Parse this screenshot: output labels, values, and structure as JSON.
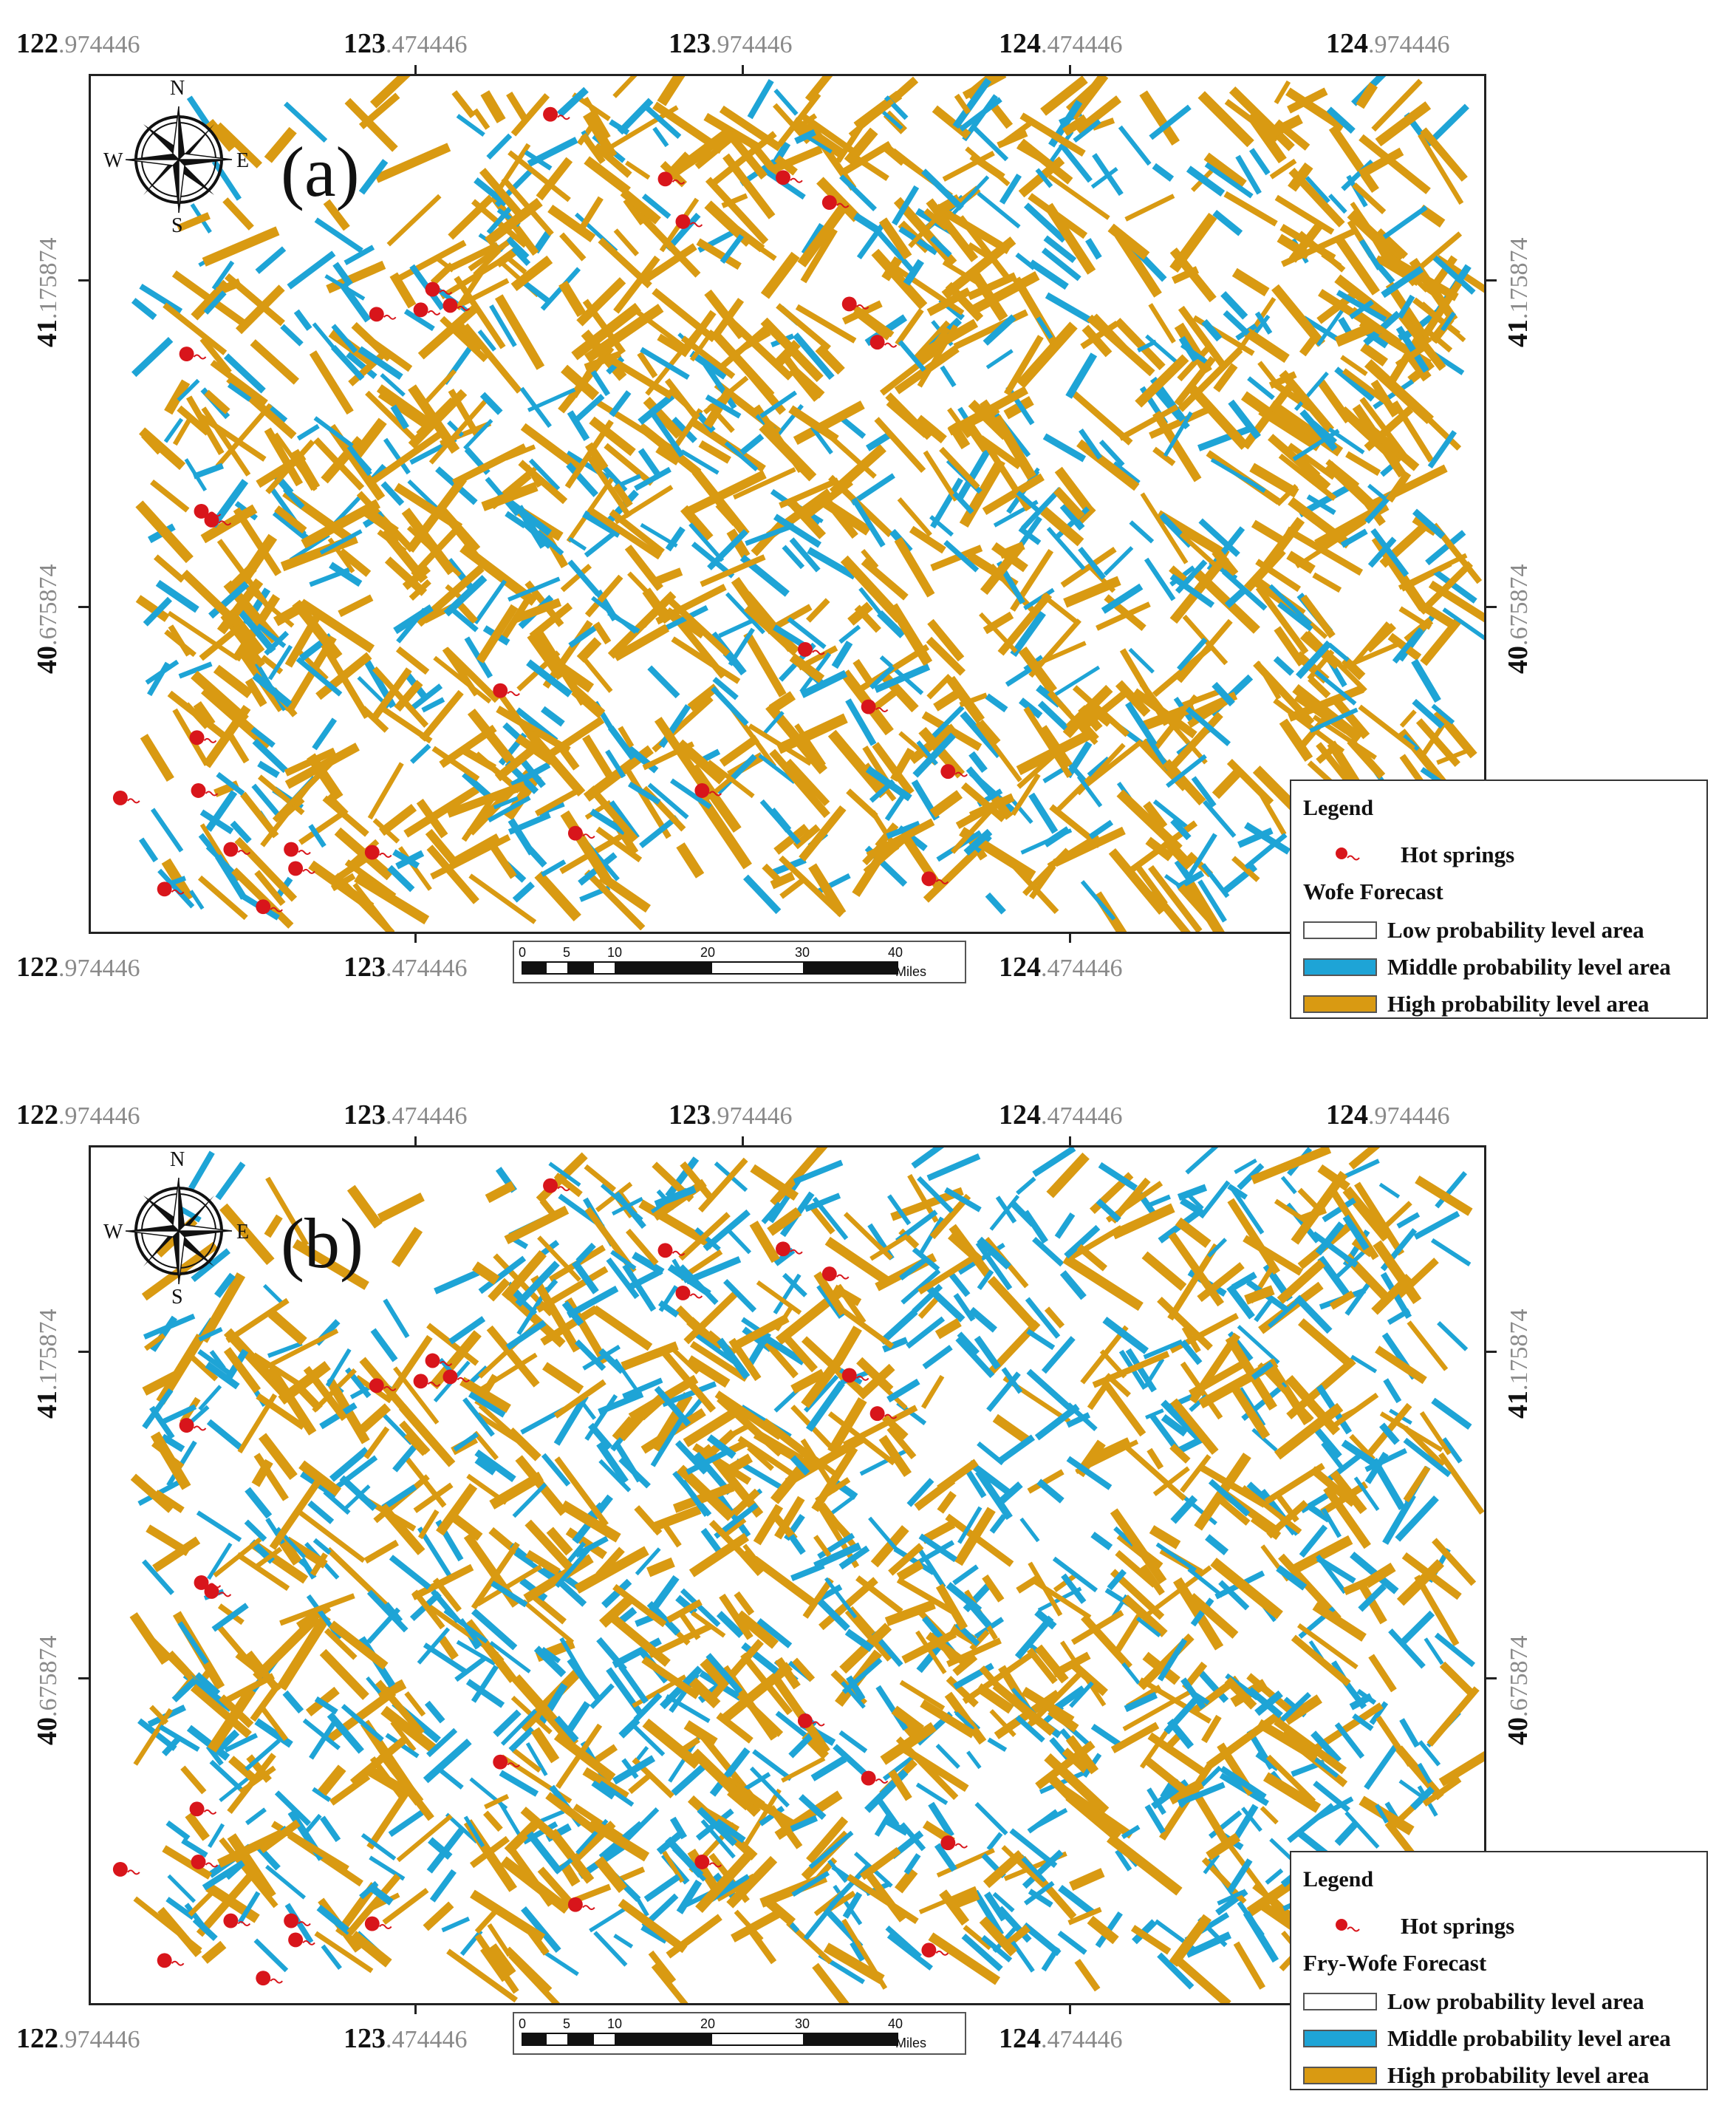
{
  "panels": [
    {
      "label": "(a)",
      "forecast_title": "Wofe Forecast",
      "lon_top": [
        {
          "deg": "122",
          "min": ".974446"
        },
        {
          "deg": "123",
          "min": ".474446"
        },
        {
          "deg": "123",
          "min": ".974446"
        },
        {
          "deg": "124",
          "min": ".474446"
        },
        {
          "deg": "124",
          "min": ".974446"
        }
      ],
      "lon_bottom": [
        {
          "deg": "122",
          "min": ".974446"
        },
        {
          "deg": "123",
          "min": ".474446"
        },
        {
          "deg": "124",
          "min": ".474446"
        }
      ],
      "lat": [
        {
          "deg": "41",
          "min": ".175874"
        },
        {
          "deg": "40",
          "min": ".675874"
        }
      ]
    },
    {
      "label": "(b)",
      "forecast_title": "Fry-Wofe Forecast",
      "lon_top": [
        {
          "deg": "122",
          "min": ".974446"
        },
        {
          "deg": "123",
          "min": ".474446"
        },
        {
          "deg": "123",
          "min": ".974446"
        },
        {
          "deg": "124",
          "min": ".474446"
        },
        {
          "deg": "124",
          "min": ".974446"
        }
      ],
      "lon_bottom": [
        {
          "deg": "122",
          "min": ".974446"
        },
        {
          "deg": "123",
          "min": ".474446"
        },
        {
          "deg": "124",
          "min": ".474446"
        }
      ],
      "lat": [
        {
          "deg": "41",
          "min": ".175874"
        },
        {
          "deg": "40",
          "min": ".675874"
        }
      ]
    }
  ],
  "legend": {
    "title": "Legend",
    "hot_springs": "Hot springs",
    "low": "Low probability level area",
    "middle": "Middle probability level area",
    "high": "High probability level area"
  },
  "compass": {
    "n": "N",
    "s": "S",
    "e": "E",
    "w": "W"
  },
  "scale": {
    "ticks": [
      "0",
      "5",
      "10",
      "20",
      "30",
      "40"
    ],
    "unit": "Miles"
  },
  "colors": {
    "low": "#ffffff",
    "middle": "#1ea4d6",
    "high": "#d99a12",
    "hot_spring": "#d8151b"
  }
}
